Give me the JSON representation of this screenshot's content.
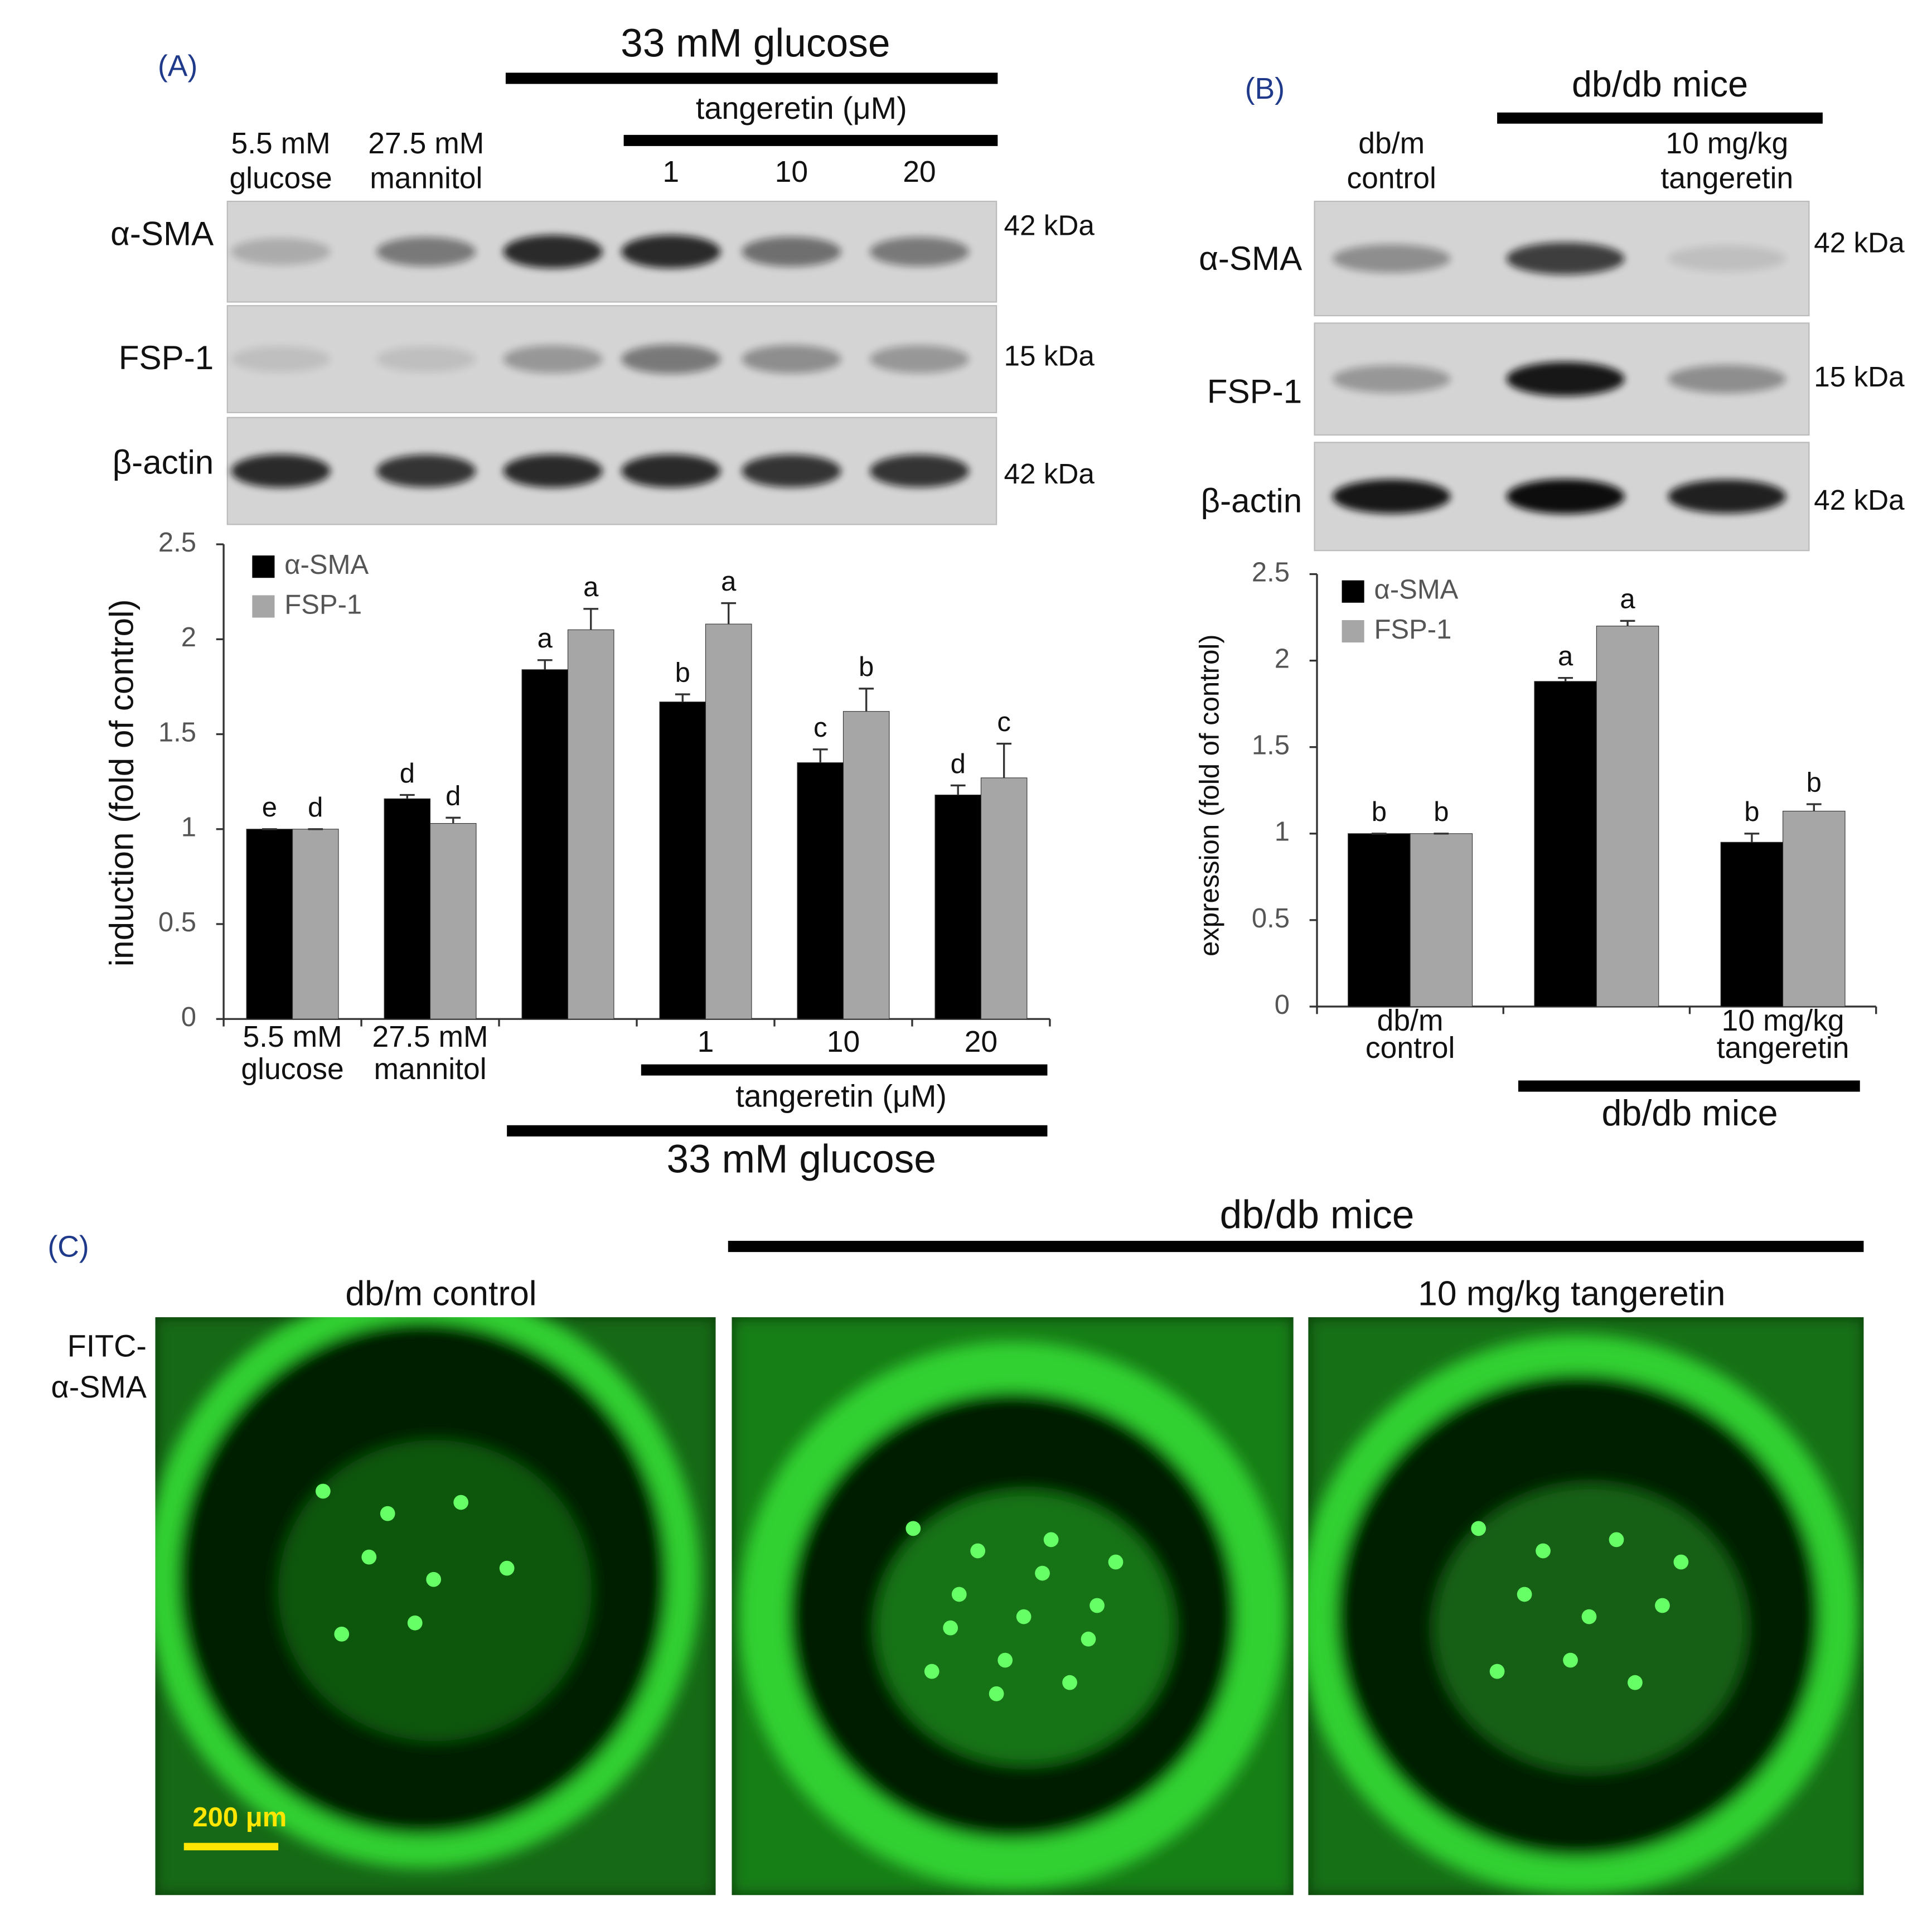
{
  "panel_labels": [
    "(A)",
    "(B)",
    "(C)"
  ],
  "blots": [
    {
      "header": "33 mM glucose",
      "subheader": "tangeretin (μM)",
      "lanes": [
        [
          "5.5 mM",
          "glucose"
        ],
        [
          "27.5 mM",
          "mannitol"
        ],
        null,
        [
          "1"
        ],
        [
          "10"
        ],
        [
          "20"
        ]
      ],
      "rows": [
        "α-SMA",
        "FSP-1",
        "β-actin"
      ],
      "sizes": [
        "42 kDa",
        "15 kDa",
        "42 kDa"
      ]
    },
    {
      "header": "db/db mice",
      "lanes": [
        [
          "db/m",
          "control"
        ],
        null,
        [
          "10 mg/kg",
          "tangeretin"
        ]
      ],
      "rows": [
        "α-SMA",
        "FSP-1",
        "β-actin"
      ],
      "sizes": [
        "42 kDa",
        "15 kDa",
        "42 kDa"
      ]
    }
  ],
  "chart_data": [
    {
      "type": "bar",
      "y_label": "induction (fold of control)",
      "categories": [
        [
          "5.5 mM",
          "glucose"
        ],
        [
          "27.5 mM",
          "mannitol"
        ],
        null,
        [
          "1"
        ],
        [
          "10"
        ],
        [
          "20"
        ]
      ],
      "groups": [
        "tangeretin (μM)",
        "33 mM glucose"
      ],
      "series": [
        {
          "name": "α-SMA",
          "color": "#000000",
          "values": [
            1.0,
            1.16,
            1.84,
            1.67,
            1.35,
            1.18
          ],
          "errors": [
            0,
            0.02,
            0.05,
            0.04,
            0.07,
            0.05
          ],
          "letters": [
            "e",
            "d",
            "a",
            "b",
            "c",
            "d"
          ]
        },
        {
          "name": "FSP-1",
          "color": "#a6a6a6",
          "values": [
            1.0,
            1.03,
            2.05,
            2.08,
            1.62,
            1.27
          ],
          "errors": [
            0,
            0.03,
            0.11,
            0.11,
            0.12,
            0.18
          ],
          "letters": [
            "d",
            "d",
            "a",
            "a",
            "b",
            "c"
          ]
        }
      ],
      "ylim": [
        0,
        2.5
      ],
      "yticks": [
        0,
        0.5,
        1,
        1.5,
        2,
        2.5
      ]
    },
    {
      "type": "bar",
      "y_label": "expression  (fold of control)",
      "categories": [
        [
          "db/m",
          "control"
        ],
        null,
        [
          "10 mg/kg",
          "tangeretin"
        ]
      ],
      "groups": [
        "db/db mice"
      ],
      "series": [
        {
          "name": "α-SMA",
          "color": "#000000",
          "values": [
            1.0,
            1.88,
            0.95
          ],
          "errors": [
            0,
            0.02,
            0.05
          ],
          "letters": [
            "b",
            "a",
            "b"
          ]
        },
        {
          "name": "FSP-1",
          "color": "#a6a6a6",
          "values": [
            1.0,
            2.2,
            1.13
          ],
          "errors": [
            0,
            0.03,
            0.04
          ],
          "letters": [
            "b",
            "a",
            "b"
          ]
        }
      ],
      "ylim": [
        0,
        2.5
      ],
      "yticks": [
        0,
        0.5,
        1,
        1.5,
        2,
        2.5
      ]
    }
  ],
  "micrographs": {
    "header": "db/db mice",
    "titles": [
      "db/m control",
      "10 mg/kg tangeretin"
    ],
    "stain": [
      "FITC-",
      "α-SMA"
    ],
    "scale_bar": "200 μm"
  }
}
